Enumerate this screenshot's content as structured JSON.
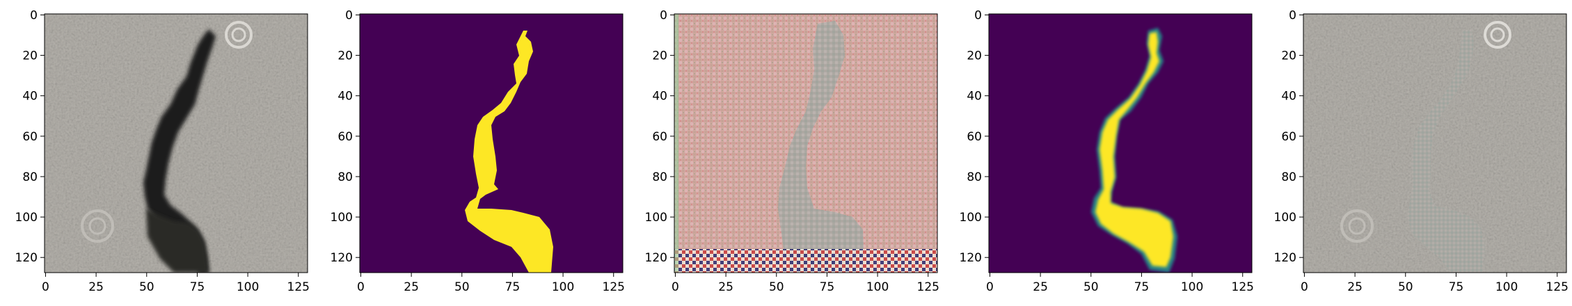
{
  "panels": [
    {
      "id": "p1",
      "kind": "photo-crack",
      "xticks": [
        "0",
        "25",
        "50",
        "75",
        "100",
        "125"
      ],
      "yticks": [
        "0",
        "20",
        "40",
        "60",
        "80",
        "100",
        "120"
      ]
    },
    {
      "id": "p2",
      "kind": "binary-mask",
      "xticks": [
        "0",
        "25",
        "50",
        "75",
        "100",
        "125"
      ],
      "yticks": [
        "0",
        "20",
        "40",
        "60",
        "80",
        "100",
        "120"
      ]
    },
    {
      "id": "p3",
      "kind": "noisy-reconstruction",
      "xticks": [
        "0",
        "25",
        "50",
        "75",
        "100",
        "125"
      ],
      "yticks": [
        "0",
        "20",
        "40",
        "60",
        "80",
        "100",
        "120"
      ]
    },
    {
      "id": "p4",
      "kind": "soft-mask",
      "xticks": [
        "0",
        "25",
        "50",
        "75",
        "100",
        "125"
      ],
      "yticks": [
        "0",
        "20",
        "40",
        "60",
        "80",
        "100",
        "120"
      ]
    },
    {
      "id": "p5",
      "kind": "inpainted-photo",
      "xticks": [
        "0",
        "25",
        "50",
        "75",
        "100",
        "125"
      ],
      "yticks": [
        "0",
        "20",
        "40",
        "60",
        "80",
        "100",
        "120"
      ]
    }
  ],
  "colors": {
    "mask_background": "#440154",
    "mask_foreground": "#fde725",
    "concrete": "#b3b0a9",
    "crack": "#1c1b1a"
  },
  "image_extent": [
    0,
    127
  ]
}
